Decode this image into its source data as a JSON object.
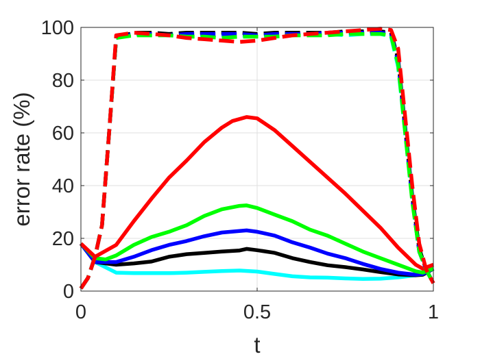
{
  "chart_data": {
    "type": "line",
    "xlabel": "t",
    "ylabel": "error rate (%)",
    "xlim": [
      0,
      1
    ],
    "ylim": [
      0,
      100
    ],
    "xticks": [
      0,
      0.5,
      1
    ],
    "xtick_labels": [
      "0",
      "0.5",
      "1"
    ],
    "yticks": [
      0,
      20,
      40,
      60,
      80,
      100
    ],
    "ytick_labels": [
      "0",
      "20",
      "40",
      "60",
      "80",
      "100"
    ],
    "grid": true,
    "legend": "none",
    "series": [
      {
        "color": "#00ffff",
        "style": "solid",
        "x": [
          0,
          0.04,
          0.1,
          0.15,
          0.2,
          0.25,
          0.3,
          0.35,
          0.4,
          0.45,
          0.5,
          0.55,
          0.6,
          0.65,
          0.7,
          0.75,
          0.8,
          0.85,
          0.9,
          0.95,
          0.97,
          1
        ],
        "y": [
          18,
          11,
          7,
          6.8,
          6.8,
          6.8,
          7,
          7.3,
          7.6,
          7.8,
          7.4,
          6.5,
          5.6,
          5.2,
          5.1,
          4.8,
          4.6,
          4.7,
          5.2,
          6,
          6.5,
          8.5
        ]
      },
      {
        "color": "#000000",
        "style": "solid",
        "x": [
          0,
          0.04,
          0.1,
          0.15,
          0.2,
          0.25,
          0.3,
          0.35,
          0.4,
          0.45,
          0.47,
          0.5,
          0.55,
          0.6,
          0.65,
          0.7,
          0.75,
          0.8,
          0.85,
          0.9,
          0.95,
          0.97,
          1
        ],
        "y": [
          18,
          11,
          10,
          10.5,
          11.2,
          13,
          14,
          14.5,
          15,
          15.4,
          16,
          15.5,
          14.5,
          12.5,
          11,
          9.8,
          9.1,
          8.2,
          7.2,
          6.3,
          6,
          6.2,
          8.5
        ]
      },
      {
        "color": "#0000ff",
        "style": "solid",
        "x": [
          0,
          0.04,
          0.1,
          0.15,
          0.2,
          0.25,
          0.3,
          0.35,
          0.4,
          0.45,
          0.47,
          0.5,
          0.55,
          0.6,
          0.65,
          0.7,
          0.75,
          0.8,
          0.85,
          0.9,
          0.95,
          0.97,
          1
        ],
        "y": [
          18,
          11,
          11,
          13,
          15.5,
          17.5,
          19,
          20.8,
          22.2,
          22.8,
          23,
          22.5,
          21,
          18.5,
          16.5,
          14.2,
          12.5,
          10.3,
          8.4,
          7,
          6.2,
          6.5,
          8.5
        ]
      },
      {
        "color": "#00ff00",
        "style": "solid",
        "x": [
          0,
          0.04,
          0.07,
          0.1,
          0.15,
          0.2,
          0.25,
          0.3,
          0.35,
          0.4,
          0.45,
          0.47,
          0.5,
          0.55,
          0.6,
          0.65,
          0.7,
          0.75,
          0.8,
          0.85,
          0.9,
          0.95,
          0.97,
          1
        ],
        "y": [
          18,
          12.5,
          12,
          13.5,
          17.5,
          20.5,
          22.5,
          25,
          28.5,
          31,
          32.3,
          32.5,
          31.5,
          29,
          26.5,
          23.3,
          21,
          18,
          15,
          12.5,
          10,
          7.5,
          7,
          8.5
        ]
      },
      {
        "color": "#ff0000",
        "style": "solid",
        "x": [
          0,
          0.04,
          0.1,
          0.15,
          0.2,
          0.25,
          0.3,
          0.35,
          0.4,
          0.43,
          0.47,
          0.5,
          0.55,
          0.6,
          0.65,
          0.7,
          0.75,
          0.8,
          0.85,
          0.9,
          0.95,
          0.97,
          1
        ],
        "y": [
          18,
          13,
          17.5,
          26.5,
          35,
          43,
          49.5,
          56.5,
          62,
          64.5,
          66,
          65.5,
          61,
          55,
          49,
          43,
          37,
          30.5,
          24,
          16.5,
          10,
          8.5,
          10
        ]
      },
      {
        "color": "#00ffff",
        "style": "dashed",
        "x": [
          0,
          0.02,
          0.04,
          0.06,
          0.08,
          0.1,
          0.15,
          0.2,
          0.25,
          0.3,
          0.35,
          0.4,
          0.45,
          0.5,
          0.55,
          0.6,
          0.65,
          0.7,
          0.75,
          0.8,
          0.85,
          0.88,
          0.9,
          0.92,
          0.94,
          0.96,
          0.98,
          1
        ],
        "y": [
          1,
          5,
          13,
          25,
          60,
          96,
          97.5,
          97,
          97.5,
          97,
          96.5,
          97,
          97,
          96.5,
          97,
          97.5,
          97.5,
          97.5,
          97,
          97.5,
          97.5,
          96.5,
          85,
          60,
          35,
          15,
          8,
          3
        ]
      },
      {
        "color": "#000000",
        "style": "dashed",
        "x": [
          0,
          0.02,
          0.04,
          0.06,
          0.08,
          0.1,
          0.15,
          0.2,
          0.25,
          0.3,
          0.35,
          0.4,
          0.45,
          0.5,
          0.55,
          0.6,
          0.65,
          0.7,
          0.75,
          0.8,
          0.85,
          0.88,
          0.9,
          0.92,
          0.94,
          0.96,
          0.98,
          1
        ],
        "y": [
          1,
          5,
          13,
          25,
          60,
          96,
          98,
          98,
          97.5,
          98,
          98,
          98,
          98,
          97.5,
          98,
          98,
          98,
          98,
          98.5,
          98.5,
          98.5,
          98,
          88,
          62,
          36,
          16,
          8,
          3
        ]
      },
      {
        "color": "#0000ff",
        "style": "dashed",
        "x": [
          0,
          0.02,
          0.04,
          0.06,
          0.08,
          0.1,
          0.15,
          0.2,
          0.25,
          0.3,
          0.35,
          0.4,
          0.45,
          0.5,
          0.55,
          0.6,
          0.65,
          0.7,
          0.75,
          0.8,
          0.85,
          0.88,
          0.9,
          0.92,
          0.94,
          0.96,
          0.98,
          1
        ],
        "y": [
          1,
          5,
          13,
          25,
          60,
          96,
          97.5,
          97.5,
          97,
          97.5,
          97.5,
          97.5,
          97.5,
          97,
          97.5,
          97.5,
          97.5,
          98,
          98,
          98,
          98,
          97.5,
          87,
          61,
          35,
          15,
          8,
          3
        ]
      },
      {
        "color": "#00ff00",
        "style": "dashed",
        "x": [
          0,
          0.02,
          0.04,
          0.06,
          0.08,
          0.1,
          0.15,
          0.2,
          0.25,
          0.3,
          0.35,
          0.4,
          0.45,
          0.5,
          0.55,
          0.6,
          0.65,
          0.7,
          0.75,
          0.8,
          0.85,
          0.88,
          0.9,
          0.92,
          0.94,
          0.96,
          0.98,
          1
        ],
        "y": [
          1,
          5,
          13,
          25,
          60,
          96,
          97,
          97,
          97,
          96.5,
          96.5,
          96,
          96.5,
          96.5,
          96.5,
          97,
          97,
          97,
          97.5,
          97.5,
          97.5,
          97,
          86,
          60,
          34,
          15,
          8,
          3
        ]
      },
      {
        "color": "#ff0000",
        "style": "dashed",
        "x": [
          0,
          0.02,
          0.04,
          0.06,
          0.08,
          0.1,
          0.15,
          0.2,
          0.25,
          0.3,
          0.35,
          0.4,
          0.45,
          0.5,
          0.55,
          0.6,
          0.65,
          0.7,
          0.75,
          0.8,
          0.85,
          0.88,
          0.9,
          0.92,
          0.94,
          0.96,
          0.98,
          1
        ],
        "y": [
          1,
          5,
          13,
          25,
          60,
          97,
          98,
          97.5,
          97,
          96,
          95.5,
          95,
          94.5,
          95,
          96,
          97,
          97.5,
          98,
          98.5,
          99,
          99.5,
          99,
          92,
          66,
          40,
          18,
          8,
          3
        ]
      }
    ]
  }
}
